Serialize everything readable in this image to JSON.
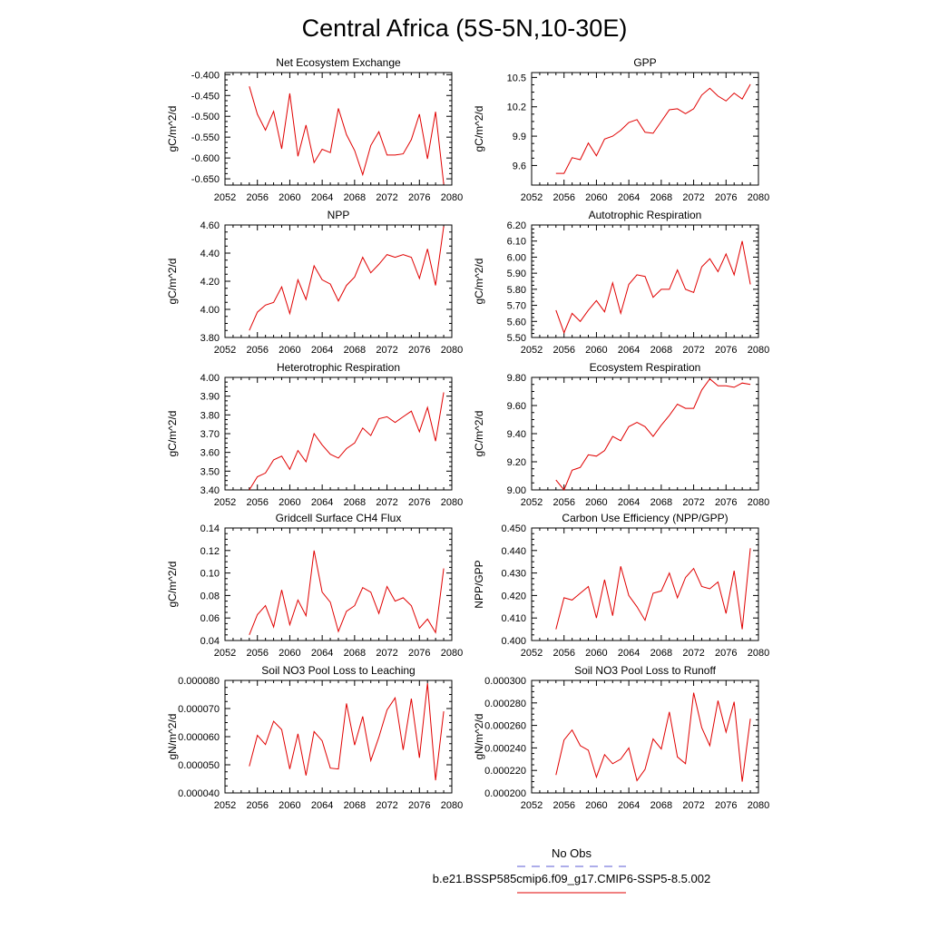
{
  "figure": {
    "title": "Central Africa (5S-5N,10-30E)",
    "legend": {
      "obs_label": "No Obs",
      "obs_color": "#5b5bd6",
      "case_label": "b.e21.BSSP585cmip6.f09_g17.CMIP6-SSP5-8.5.002",
      "case_color": "#e00000"
    }
  },
  "chart_data": [
    {
      "type": "line",
      "title": "Net Ecosystem Exchange",
      "ylabel": "gC/m^2/d",
      "xlim": [
        2052,
        2080
      ],
      "xticks": [
        "2052",
        "2056",
        "2060",
        "2064",
        "2068",
        "2072",
        "2076",
        "2080"
      ],
      "ylim": [
        -0.665,
        -0.395
      ],
      "yticks": [
        -0.4,
        -0.45,
        -0.5,
        -0.55,
        -0.6,
        -0.65
      ],
      "ytick_labels": [
        "-0.400",
        "-0.450",
        "-0.500",
        "-0.550",
        "-0.600",
        "-0.650"
      ],
      "series": [
        {
          "color": "#e00000",
          "x": [
            2055,
            2056,
            2057,
            2058,
            2059,
            2060,
            2061,
            2062,
            2063,
            2064,
            2065,
            2066,
            2067,
            2068,
            2069,
            2070,
            2071,
            2072,
            2073,
            2074,
            2075,
            2076,
            2077,
            2078,
            2079
          ],
          "values": [
            -0.428,
            -0.495,
            -0.533,
            -0.488,
            -0.578,
            -0.445,
            -0.596,
            -0.521,
            -0.611,
            -0.579,
            -0.587,
            -0.481,
            -0.544,
            -0.582,
            -0.64,
            -0.57,
            -0.537,
            -0.593,
            -0.593,
            -0.59,
            -0.556,
            -0.495,
            -0.602,
            -0.489,
            -0.663
          ]
        }
      ]
    },
    {
      "type": "line",
      "title": "GPP",
      "ylabel": "gC/m^2/d",
      "xlim": [
        2052,
        2080
      ],
      "xticks": [
        "2052",
        "2056",
        "2060",
        "2064",
        "2068",
        "2072",
        "2076",
        "2080"
      ],
      "ylim": [
        9.4,
        10.55
      ],
      "yticks": [
        9.6,
        9.9,
        10.2,
        10.5
      ],
      "ytick_labels": [
        "9.6",
        "9.9",
        "10.2",
        "10.5"
      ],
      "series": [
        {
          "color": "#e00000",
          "x": [
            2055,
            2056,
            2057,
            2058,
            2059,
            2060,
            2061,
            2062,
            2063,
            2064,
            2065,
            2066,
            2067,
            2068,
            2069,
            2070,
            2071,
            2072,
            2073,
            2074,
            2075,
            2076,
            2077,
            2078,
            2079
          ],
          "values": [
            9.52,
            9.52,
            9.68,
            9.66,
            9.83,
            9.7,
            9.87,
            9.9,
            9.96,
            10.04,
            10.07,
            9.94,
            9.93,
            10.05,
            10.17,
            10.18,
            10.13,
            10.18,
            10.32,
            10.39,
            10.31,
            10.26,
            10.34,
            10.28,
            10.43
          ]
        }
      ]
    },
    {
      "type": "line",
      "title": "NPP",
      "ylabel": "gC/m^2/d",
      "xlim": [
        2052,
        2080
      ],
      "xticks": [
        "2052",
        "2056",
        "2060",
        "2064",
        "2068",
        "2072",
        "2076",
        "2080"
      ],
      "ylim": [
        3.8,
        4.6
      ],
      "yticks": [
        3.8,
        4.0,
        4.2,
        4.4,
        4.6
      ],
      "ytick_labels": [
        "3.80",
        "4.00",
        "4.20",
        "4.40",
        "4.60"
      ],
      "series": [
        {
          "color": "#e00000",
          "x": [
            2055,
            2056,
            2057,
            2058,
            2059,
            2060,
            2061,
            2062,
            2063,
            2064,
            2065,
            2066,
            2067,
            2068,
            2069,
            2070,
            2071,
            2072,
            2073,
            2074,
            2075,
            2076,
            2077,
            2078,
            2079
          ],
          "values": [
            3.85,
            3.98,
            4.03,
            4.05,
            4.16,
            3.97,
            4.21,
            4.07,
            4.31,
            4.21,
            4.18,
            4.06,
            4.17,
            4.23,
            4.37,
            4.26,
            4.32,
            4.39,
            4.37,
            4.39,
            4.37,
            4.22,
            4.43,
            4.17,
            4.59
          ]
        }
      ]
    },
    {
      "type": "line",
      "title": "Autotrophic Respiration",
      "ylabel": "gC/m^2/d",
      "xlim": [
        2052,
        2080
      ],
      "xticks": [
        "2052",
        "2056",
        "2060",
        "2064",
        "2068",
        "2072",
        "2076",
        "2080"
      ],
      "ylim": [
        5.5,
        6.2
      ],
      "yticks": [
        5.5,
        5.6,
        5.7,
        5.8,
        5.9,
        6.0,
        6.1,
        6.2
      ],
      "ytick_labels": [
        "5.50",
        "5.60",
        "5.70",
        "5.80",
        "5.90",
        "6.00",
        "6.10",
        "6.20"
      ],
      "series": [
        {
          "color": "#e00000",
          "x": [
            2055,
            2056,
            2057,
            2058,
            2059,
            2060,
            2061,
            2062,
            2063,
            2064,
            2065,
            2066,
            2067,
            2068,
            2069,
            2070,
            2071,
            2072,
            2073,
            2074,
            2075,
            2076,
            2077,
            2078,
            2079
          ],
          "values": [
            5.67,
            5.53,
            5.65,
            5.6,
            5.67,
            5.73,
            5.66,
            5.84,
            5.65,
            5.83,
            5.89,
            5.88,
            5.75,
            5.8,
            5.8,
            5.92,
            5.8,
            5.78,
            5.94,
            5.99,
            5.91,
            6.02,
            5.89,
            6.1,
            5.83
          ]
        }
      ]
    },
    {
      "type": "line",
      "title": "Heterotrophic Respiration",
      "ylabel": "gC/m^2/d",
      "xlim": [
        2052,
        2080
      ],
      "xticks": [
        "2052",
        "2056",
        "2060",
        "2064",
        "2068",
        "2072",
        "2076",
        "2080"
      ],
      "ylim": [
        3.4,
        4.0
      ],
      "yticks": [
        3.4,
        3.5,
        3.6,
        3.7,
        3.8,
        3.9,
        4.0
      ],
      "ytick_labels": [
        "3.40",
        "3.50",
        "3.60",
        "3.70",
        "3.80",
        "3.90",
        "4.00"
      ],
      "series": [
        {
          "color": "#e00000",
          "x": [
            2055,
            2056,
            2057,
            2058,
            2059,
            2060,
            2061,
            2062,
            2063,
            2064,
            2065,
            2066,
            2067,
            2068,
            2069,
            2070,
            2071,
            2072,
            2073,
            2074,
            2075,
            2076,
            2077,
            2078,
            2079
          ],
          "values": [
            3.4,
            3.47,
            3.49,
            3.56,
            3.58,
            3.51,
            3.61,
            3.55,
            3.7,
            3.64,
            3.59,
            3.57,
            3.62,
            3.65,
            3.73,
            3.69,
            3.78,
            3.79,
            3.76,
            3.79,
            3.82,
            3.71,
            3.84,
            3.66,
            3.92
          ]
        }
      ]
    },
    {
      "type": "line",
      "title": "Ecosystem Respiration",
      "ylabel": "gC/m^2/d",
      "xlim": [
        2052,
        2080
      ],
      "xticks": [
        "2052",
        "2056",
        "2060",
        "2064",
        "2068",
        "2072",
        "2076",
        "2080"
      ],
      "ylim": [
        9.0,
        9.8
      ],
      "yticks": [
        9.0,
        9.2,
        9.4,
        9.6,
        9.8
      ],
      "ytick_labels": [
        "9.00",
        "9.20",
        "9.40",
        "9.60",
        "9.80"
      ],
      "series": [
        {
          "color": "#e00000",
          "x": [
            2055,
            2056,
            2057,
            2058,
            2059,
            2060,
            2061,
            2062,
            2063,
            2064,
            2065,
            2066,
            2067,
            2068,
            2069,
            2070,
            2071,
            2072,
            2073,
            2074,
            2075,
            2076,
            2077,
            2078,
            2079
          ],
          "values": [
            9.07,
            9.0,
            9.14,
            9.16,
            9.25,
            9.24,
            9.28,
            9.38,
            9.35,
            9.45,
            9.48,
            9.45,
            9.38,
            9.46,
            9.53,
            9.61,
            9.58,
            9.58,
            9.71,
            9.79,
            9.74,
            9.74,
            9.73,
            9.76,
            9.75
          ]
        }
      ]
    },
    {
      "type": "line",
      "title": "Gridcell Surface CH4 Flux",
      "ylabel": "gC/m^2/d",
      "xlim": [
        2052,
        2080
      ],
      "xticks": [
        "2052",
        "2056",
        "2060",
        "2064",
        "2068",
        "2072",
        "2076",
        "2080"
      ],
      "ylim": [
        0.04,
        0.14
      ],
      "yticks": [
        0.04,
        0.06,
        0.08,
        0.1,
        0.12,
        0.14
      ],
      "ytick_labels": [
        "0.04",
        "0.06",
        "0.08",
        "0.10",
        "0.12",
        "0.14"
      ],
      "series": [
        {
          "color": "#e00000",
          "x": [
            2055,
            2056,
            2057,
            2058,
            2059,
            2060,
            2061,
            2062,
            2063,
            2064,
            2065,
            2066,
            2067,
            2068,
            2069,
            2070,
            2071,
            2072,
            2073,
            2074,
            2075,
            2076,
            2077,
            2078,
            2079
          ],
          "values": [
            0.045,
            0.063,
            0.071,
            0.052,
            0.085,
            0.054,
            0.076,
            0.062,
            0.12,
            0.083,
            0.074,
            0.048,
            0.066,
            0.071,
            0.087,
            0.083,
            0.064,
            0.088,
            0.075,
            0.078,
            0.071,
            0.051,
            0.059,
            0.047,
            0.104
          ]
        }
      ]
    },
    {
      "type": "line",
      "title": "Carbon Use Efficiency (NPP/GPP)",
      "ylabel": "NPP/GPP",
      "xlim": [
        2052,
        2080
      ],
      "xticks": [
        "2052",
        "2056",
        "2060",
        "2064",
        "2068",
        "2072",
        "2076",
        "2080"
      ],
      "ylim": [
        0.4,
        0.45
      ],
      "yticks": [
        0.4,
        0.41,
        0.42,
        0.43,
        0.44,
        0.45
      ],
      "ytick_labels": [
        "0.400",
        "0.410",
        "0.420",
        "0.430",
        "0.440",
        "0.450"
      ],
      "series": [
        {
          "color": "#e00000",
          "x": [
            2055,
            2056,
            2057,
            2058,
            2059,
            2060,
            2061,
            2062,
            2063,
            2064,
            2065,
            2066,
            2067,
            2068,
            2069,
            2070,
            2071,
            2072,
            2073,
            2074,
            2075,
            2076,
            2077,
            2078,
            2079
          ],
          "values": [
            0.405,
            0.419,
            0.418,
            0.421,
            0.424,
            0.41,
            0.427,
            0.411,
            0.433,
            0.42,
            0.415,
            0.409,
            0.421,
            0.422,
            0.43,
            0.419,
            0.428,
            0.432,
            0.424,
            0.423,
            0.426,
            0.412,
            0.431,
            0.405,
            0.441
          ]
        }
      ]
    },
    {
      "type": "line",
      "title": "Soil NO3 Pool Loss to Leaching",
      "ylabel": "gN/m^2/d",
      "xlim": [
        2052,
        2080
      ],
      "xticks": [
        "2052",
        "2056",
        "2060",
        "2064",
        "2068",
        "2072",
        "2076",
        "2080"
      ],
      "ylim": [
        4e-05,
        8e-05
      ],
      "yticks": [
        4e-05,
        5e-05,
        6e-05,
        7e-05,
        8e-05
      ],
      "ytick_labels": [
        "0.000040",
        "0.000050",
        "0.000060",
        "0.000070",
        "0.000080"
      ],
      "series": [
        {
          "color": "#e00000",
          "x": [
            2055,
            2056,
            2057,
            2058,
            2059,
            2060,
            2061,
            2062,
            2063,
            2064,
            2065,
            2066,
            2067,
            2068,
            2069,
            2070,
            2071,
            2072,
            2073,
            2074,
            2075,
            2076,
            2077,
            2078,
            2079
          ],
          "values": [
            4.95e-05,
            6.05e-05,
            5.72e-05,
            6.55e-05,
            6.25e-05,
            4.85e-05,
            6.1e-05,
            4.62e-05,
            6.18e-05,
            5.85e-05,
            4.88e-05,
            4.85e-05,
            7.18e-05,
            5.7e-05,
            6.72e-05,
            5.15e-05,
            5.98e-05,
            6.95e-05,
            7.38e-05,
            5.53e-05,
            7.35e-05,
            5.25e-05,
            7.9e-05,
            4.45e-05,
            6.9e-05
          ]
        }
      ]
    },
    {
      "type": "line",
      "title": "Soil NO3 Pool Loss to Runoff",
      "ylabel": "gN/m^2/d",
      "xlim": [
        2052,
        2080
      ],
      "xticks": [
        "2052",
        "2056",
        "2060",
        "2064",
        "2068",
        "2072",
        "2076",
        "2080"
      ],
      "ylim": [
        0.0002,
        0.0003
      ],
      "yticks": [
        0.0002,
        0.00022,
        0.00024,
        0.00026,
        0.00028,
        0.0003
      ],
      "ytick_labels": [
        "0.000200",
        "0.000220",
        "0.000240",
        "0.000260",
        "0.000280",
        "0.000300"
      ],
      "series": [
        {
          "color": "#e00000",
          "x": [
            2055,
            2056,
            2057,
            2058,
            2059,
            2060,
            2061,
            2062,
            2063,
            2064,
            2065,
            2066,
            2067,
            2068,
            2069,
            2070,
            2071,
            2072,
            2073,
            2074,
            2075,
            2076,
            2077,
            2078,
            2079
          ],
          "values": [
            0.000216,
            0.000247,
            0.000256,
            0.000242,
            0.000238,
            0.000214,
            0.000234,
            0.000226,
            0.00023,
            0.00024,
            0.000211,
            0.000221,
            0.000248,
            0.000239,
            0.000272,
            0.000232,
            0.000226,
            0.000289,
            0.000258,
            0.000242,
            0.000282,
            0.000254,
            0.000281,
            0.00021,
            0.000266
          ]
        }
      ]
    }
  ]
}
